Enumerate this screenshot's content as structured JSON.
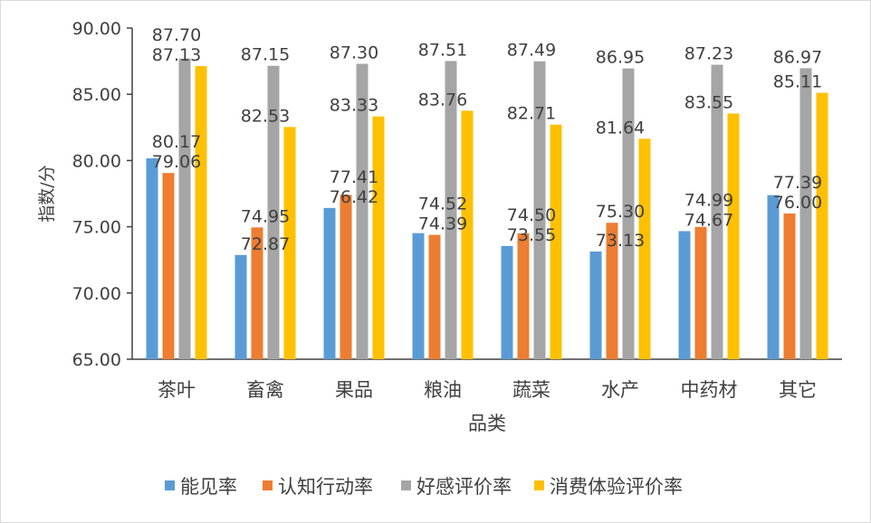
{
  "chart_data": {
    "type": "bar",
    "xlabel": "品类",
    "ylabel": "指数/分",
    "ylim": [
      65,
      90
    ],
    "yticks": [
      "65.00",
      "70.00",
      "75.00",
      "80.00",
      "85.00",
      "90.00"
    ],
    "grid": false,
    "legend_position": "bottom",
    "categories": [
      "茶叶",
      "畜禽",
      "果品",
      "粮油",
      "蔬菜",
      "水产",
      "中药材",
      "其它"
    ],
    "series": [
      {
        "name": "能见率",
        "color": "#5b9bd5",
        "values": [
          80.17,
          72.87,
          76.42,
          74.52,
          73.55,
          73.13,
          74.67,
          77.39
        ]
      },
      {
        "name": "认知行动率",
        "color": "#ed7d31",
        "values": [
          79.06,
          74.95,
          77.41,
          74.39,
          74.5,
          75.3,
          74.99,
          76.0
        ]
      },
      {
        "name": "好感评价率",
        "color": "#a5a5a5",
        "values": [
          87.7,
          87.15,
          87.3,
          87.51,
          87.49,
          86.95,
          87.23,
          86.97
        ]
      },
      {
        "name": "消费体验评价率",
        "color": "#ffc000",
        "values": [
          87.13,
          82.53,
          83.33,
          83.76,
          82.71,
          81.64,
          83.55,
          85.11
        ]
      }
    ]
  }
}
